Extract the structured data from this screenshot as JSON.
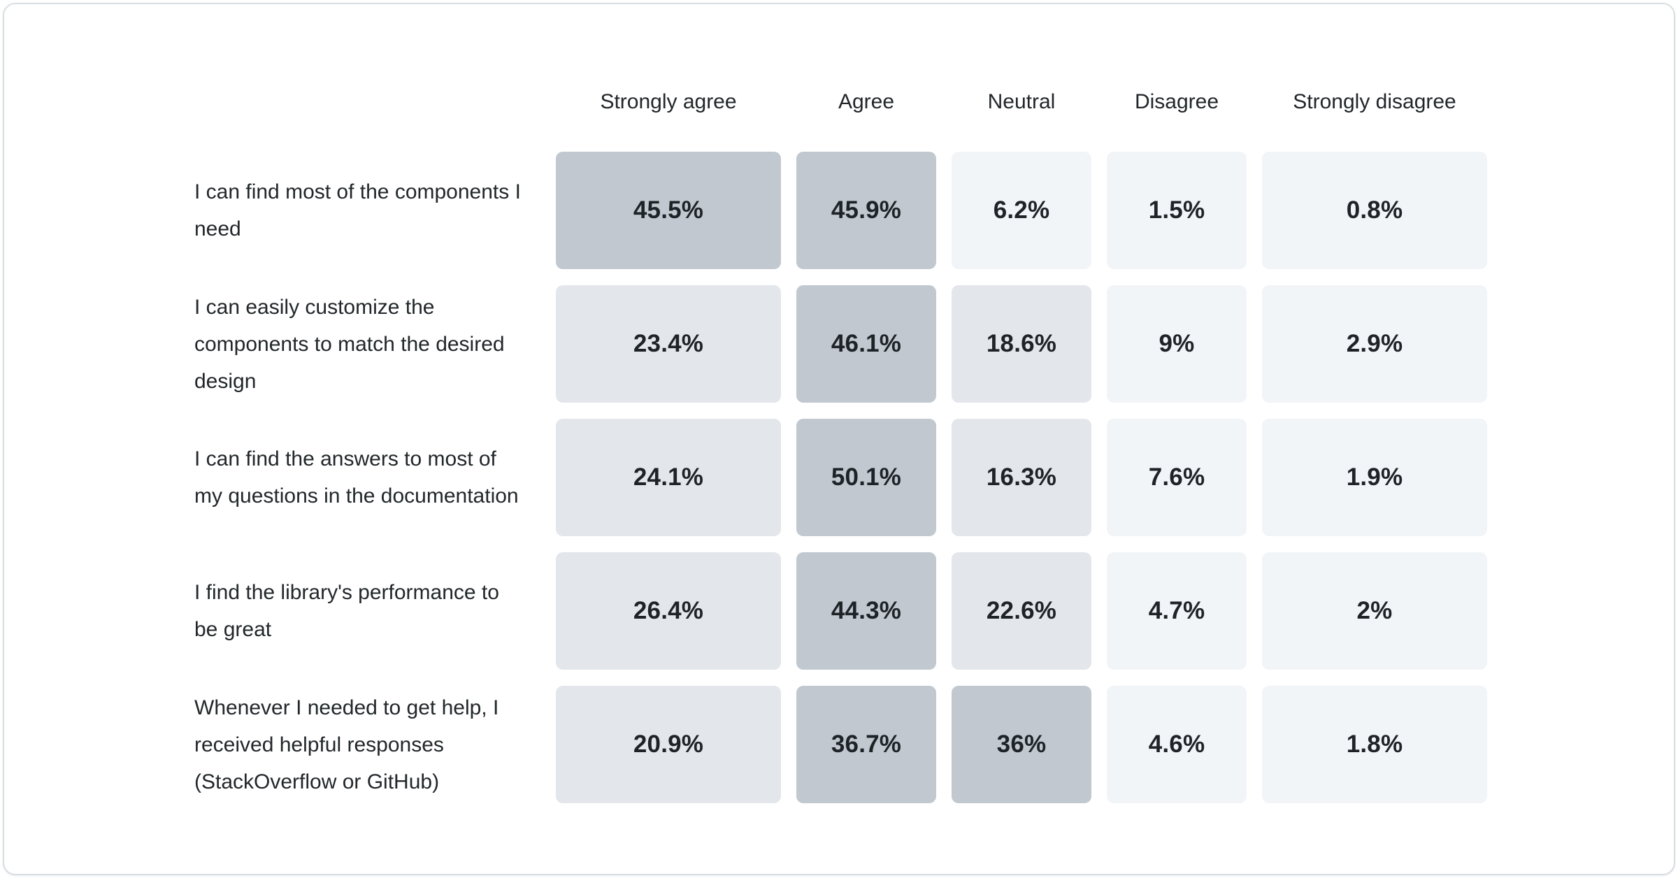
{
  "page": {
    "background_color": "#ffffff",
    "card_border_color": "#d9dee3"
  },
  "chart_data": {
    "type": "heatmap",
    "categories": [
      "Strongly agree",
      "Agree",
      "Neutral",
      "Disagree",
      "Strongly disagree"
    ],
    "rows": [
      {
        "label": "I can find most of the components I need",
        "values": [
          45.5,
          45.9,
          6.2,
          1.5,
          0.8
        ],
        "display": [
          "45.5%",
          "45.9%",
          "6.2%",
          "1.5%",
          "0.8%"
        ]
      },
      {
        "label": "I can easily customize the components to match the desired design",
        "values": [
          23.4,
          46.1,
          18.6,
          9,
          2.9
        ],
        "display": [
          "23.4%",
          "46.1%",
          "18.6%",
          "9%",
          "2.9%"
        ]
      },
      {
        "label": "I can find the answers to most of my questions in the documentation",
        "values": [
          24.1,
          50.1,
          16.3,
          7.6,
          1.9
        ],
        "display": [
          "24.1%",
          "50.1%",
          "16.3%",
          "7.6%",
          "1.9%"
        ]
      },
      {
        "label": "I find the library's performance to be great",
        "values": [
          26.4,
          44.3,
          22.6,
          4.7,
          2
        ],
        "display": [
          "26.4%",
          "44.3%",
          "22.6%",
          "4.7%",
          "2%"
        ]
      },
      {
        "label": "Whenever I needed to get help, I received helpful responses (StackOverflow or GitHub)",
        "values": [
          20.9,
          36.7,
          36,
          4.6,
          1.8
        ],
        "display": [
          "20.9%",
          "36.7%",
          "36%",
          "4.6%",
          "1.8%"
        ]
      }
    ],
    "value_unit": "%",
    "legend": "none",
    "grid": "off",
    "color_scale": {
      "bins": [
        {
          "min_value": 30,
          "color": "#c1c8cf"
        },
        {
          "min_value": 10,
          "color": "#e3e7eb"
        },
        {
          "min_value": 0,
          "color": "#f2f5f7"
        }
      ],
      "header_text_color": "#21272a",
      "label_text_color": "#21272a",
      "cell_text_color": "#1e2328"
    }
  }
}
